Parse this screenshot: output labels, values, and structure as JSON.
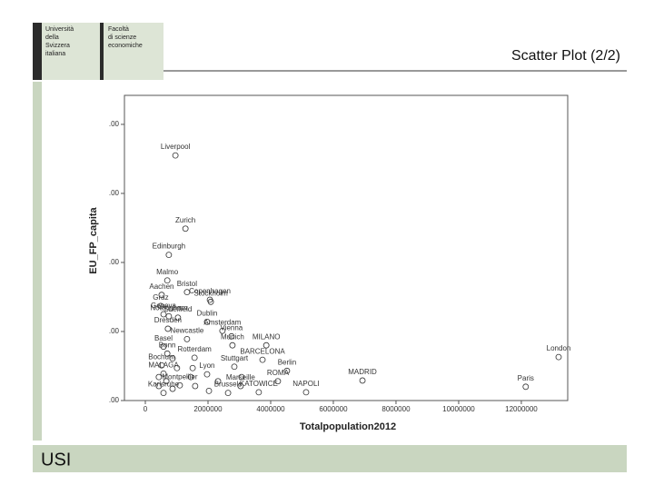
{
  "slide": {
    "logo_left": [
      "Università",
      "della",
      "Svizzera",
      "italiana"
    ],
    "logo_right": [
      "Facoltà",
      "di scienze",
      "economiche"
    ],
    "title": "Scatter Plot (2/2)",
    "footer": "USI"
  },
  "chart_data": {
    "type": "scatter",
    "x_label": "Totalpopulation2012",
    "y_label": "EU_FP_capita",
    "color": "#333333",
    "xlim": [
      -667000,
      13480000
    ],
    "ylim": [
      0,
      4.42
    ],
    "xticks": [
      0,
      2000000,
      4000000,
      6000000,
      8000000,
      10000000,
      12000000
    ],
    "yticks": [
      {
        "value": 0,
        "label": ".00"
      },
      {
        "value": 1,
        "label": ".00"
      },
      {
        "value": 2,
        "label": ".00"
      },
      {
        "value": 3,
        "label": ".00"
      },
      {
        "value": 4,
        "label": ".00"
      }
    ],
    "labels": [
      "Liverpool",
      "Zurich",
      "Edinburgh",
      "Malmo",
      "Aachen",
      "Bristol",
      "Copenhagen",
      "Graz",
      "Stockholm",
      "Nottingham",
      "Geneva",
      "Sheffield",
      "Dublin",
      "Amsterdam",
      "Dresden",
      "Newcastle",
      "Vienna",
      "Basel",
      "Munich",
      "MILANO",
      "London",
      "Bonn",
      "Rotterdam",
      "BARCELONA",
      "Bochum",
      "Stuttgart",
      "Berlin",
      "MADRID",
      "MALAGA",
      "Lyon",
      "Paris",
      "Montpellier",
      "ROMA",
      "Marseille",
      "Karlsruhe",
      "Brussels",
      "KATOWICE",
      "NAPOLI",
      null,
      null,
      null,
      null,
      null,
      null,
      null,
      null,
      null,
      null,
      null,
      null
    ],
    "x": [
      960000,
      1280000,
      750000,
      700000,
      520000,
      1330000,
      2060000,
      490000,
      2090000,
      750000,
      580000,
      1040000,
      1970000,
      2460000,
      720000,
      1330000,
      2750000,
      580000,
      2780000,
      3860000,
      13190000,
      700000,
      1570000,
      3740000,
      520000,
      2840000,
      4520000,
      6930000,
      580000,
      1970000,
      12140000,
      1100000,
      4230000,
      3040000,
      580000,
      2640000,
      3620000,
      5130000,
      430000,
      670000,
      870000,
      1450000,
      1010000,
      2030000,
      2320000,
      1590000,
      870000,
      430000,
      3070000,
      1510000
    ],
    "y": [
      3.55,
      2.49,
      2.11,
      1.74,
      1.53,
      1.57,
      1.46,
      1.37,
      1.43,
      1.22,
      1.25,
      1.2,
      1.14,
      1.01,
      1.04,
      0.89,
      0.93,
      0.78,
      0.8,
      0.8,
      0.63,
      0.68,
      0.62,
      0.59,
      0.51,
      0.49,
      0.43,
      0.29,
      0.39,
      0.38,
      0.2,
      0.22,
      0.28,
      0.21,
      0.11,
      0.11,
      0.12,
      0.12,
      0.34,
      0.28,
      0.17,
      0.34,
      0.47,
      0.14,
      0.28,
      0.21,
      0.61,
      0.21,
      0.34,
      0.47
    ]
  }
}
